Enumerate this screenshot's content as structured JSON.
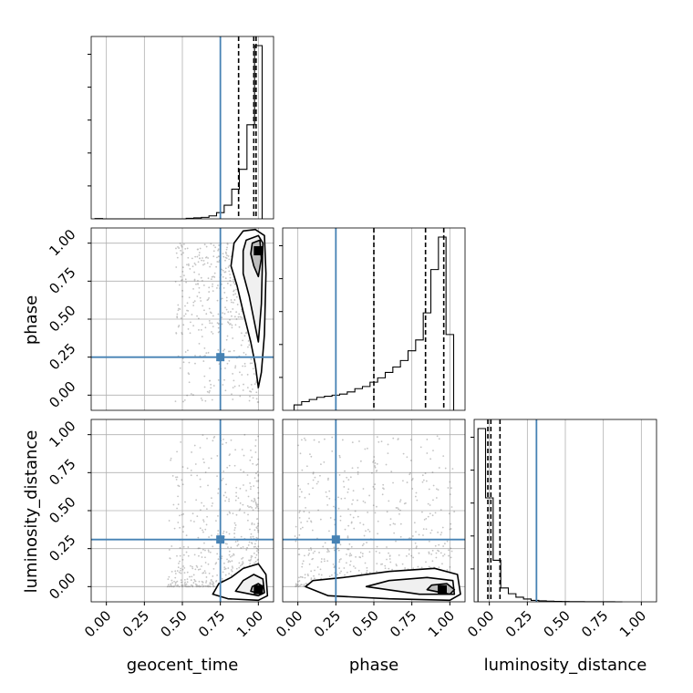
{
  "chart_data": {
    "type": "corner",
    "parameters": [
      "geocent_time",
      "phase",
      "luminosity_distance"
    ],
    "tick_labels": [
      "0.00",
      "0.25",
      "0.50",
      "0.75",
      "1.00"
    ],
    "tick_values": [
      0,
      0.25,
      0.5,
      0.75,
      1.0
    ],
    "axis_range": [
      -0.1,
      1.1
    ],
    "truth_color": "#4682b4",
    "truths": {
      "geocent_time": 0.75,
      "phase": 0.25,
      "luminosity_distance": 0.31
    },
    "grid": true,
    "diagonal": [
      {
        "parameter": "geocent_time",
        "quantiles": [
          0.87,
          0.97,
          0.985
        ],
        "hist": [
          [
            -0.05,
            0.1
          ],
          [
            0.0,
            0.0
          ],
          [
            0.05,
            0.0
          ],
          [
            0.1,
            0.0
          ],
          [
            0.15,
            0.0
          ],
          [
            0.2,
            0.0
          ],
          [
            0.25,
            0.0
          ],
          [
            0.3,
            0.0
          ],
          [
            0.35,
            0.0
          ],
          [
            0.4,
            0.0
          ],
          [
            0.45,
            0.0
          ],
          [
            0.5,
            0.0
          ],
          [
            0.55,
            0.2
          ],
          [
            0.6,
            0.4
          ],
          [
            0.65,
            0.6
          ],
          [
            0.7,
            1.2
          ],
          [
            0.75,
            2.5
          ],
          [
            0.8,
            5.5
          ],
          [
            0.85,
            12
          ],
          [
            0.9,
            20
          ],
          [
            0.95,
            38
          ],
          [
            1.0,
            70
          ]
        ]
      },
      {
        "parameter": "phase",
        "quantiles": [
          0.5,
          0.84,
          0.96
        ],
        "hist": [
          [
            0.0,
            0.5
          ],
          [
            0.05,
            0.8
          ],
          [
            0.1,
            1.0
          ],
          [
            0.15,
            1.2
          ],
          [
            0.2,
            1.3
          ],
          [
            0.25,
            1.4
          ],
          [
            0.3,
            1.5
          ],
          [
            0.35,
            1.7
          ],
          [
            0.4,
            2.0
          ],
          [
            0.45,
            2.2
          ],
          [
            0.5,
            2.6
          ],
          [
            0.55,
            3.0
          ],
          [
            0.6,
            3.5
          ],
          [
            0.65,
            4.0
          ],
          [
            0.7,
            4.6
          ],
          [
            0.75,
            5.5
          ],
          [
            0.8,
            6.5
          ],
          [
            0.85,
            9.0
          ],
          [
            0.9,
            13
          ],
          [
            0.95,
            16
          ],
          [
            1.0,
            7.0
          ]
        ]
      },
      {
        "parameter": "luminosity_distance",
        "quantiles": [
          -0.01,
          0.01,
          0.07
        ],
        "hist": [
          [
            -0.05,
            75
          ],
          [
            0.0,
            45
          ],
          [
            0.05,
            18
          ],
          [
            0.1,
            6
          ],
          [
            0.15,
            3.5
          ],
          [
            0.2,
            2
          ],
          [
            0.25,
            1.2
          ],
          [
            0.3,
            0.6
          ],
          [
            0.35,
            0.4
          ],
          [
            0.4,
            0.3
          ],
          [
            0.45,
            0.2
          ],
          [
            0.5,
            0.15
          ],
          [
            0.55,
            0.1
          ],
          [
            0.6,
            0.1
          ],
          [
            0.65,
            0.05
          ],
          [
            0.7,
            0.05
          ],
          [
            0.75,
            0.05
          ],
          [
            0.8,
            0.03
          ],
          [
            0.85,
            0.0
          ]
        ]
      }
    ],
    "pairs": [
      {
        "x": "geocent_time",
        "y": "phase",
        "peak": [
          1.0,
          0.95
        ],
        "contours": [
          [
            [
              0.9,
              1.08
            ],
            [
              0.98,
              1.09
            ],
            [
              1.04,
              1.05
            ],
            [
              1.05,
              0.8
            ],
            [
              1.04,
              0.4
            ],
            [
              1.02,
              0.15
            ],
            [
              1.0,
              0.05
            ],
            [
              0.98,
              0.2
            ],
            [
              0.95,
              0.35
            ],
            [
              0.9,
              0.55
            ],
            [
              0.86,
              0.72
            ],
            [
              0.82,
              0.85
            ],
            [
              0.84,
              1.0
            ]
          ],
          [
            [
              0.92,
              1.02
            ],
            [
              1.0,
              1.05
            ],
            [
              1.03,
              1.0
            ],
            [
              1.02,
              0.6
            ],
            [
              1.0,
              0.35
            ],
            [
              0.98,
              0.45
            ],
            [
              0.94,
              0.65
            ],
            [
              0.9,
              0.8
            ],
            [
              0.9,
              0.95
            ]
          ],
          [
            [
              0.96,
              1.0
            ],
            [
              1.01,
              1.02
            ],
            [
              1.02,
              0.9
            ],
            [
              1.0,
              0.78
            ],
            [
              0.97,
              0.85
            ],
            [
              0.95,
              0.93
            ]
          ]
        ]
      },
      {
        "x": "geocent_time",
        "y": "luminosity_distance",
        "peak": [
          1.0,
          -0.02
        ],
        "contours": [
          [
            [
              0.7,
              -0.05
            ],
            [
              0.8,
              -0.08
            ],
            [
              1.0,
              -0.09
            ],
            [
              1.06,
              -0.06
            ],
            [
              1.05,
              0.08
            ],
            [
              1.0,
              0.15
            ],
            [
              0.9,
              0.12
            ],
            [
              0.82,
              0.06
            ],
            [
              0.74,
              0.02
            ]
          ],
          [
            [
              0.85,
              -0.03
            ],
            [
              1.0,
              -0.06
            ],
            [
              1.04,
              -0.04
            ],
            [
              1.03,
              0.05
            ],
            [
              0.97,
              0.08
            ],
            [
              0.9,
              0.04
            ]
          ],
          [
            [
              0.95,
              -0.03
            ],
            [
              1.02,
              -0.05
            ],
            [
              1.03,
              0.0
            ],
            [
              1.0,
              0.02
            ],
            [
              0.96,
              0.0
            ]
          ]
        ]
      },
      {
        "x": "phase",
        "y": "luminosity_distance",
        "peak": [
          0.95,
          -0.02
        ],
        "contours": [
          [
            [
              0.05,
              0.0
            ],
            [
              0.2,
              -0.06
            ],
            [
              0.6,
              -0.08
            ],
            [
              1.0,
              -0.09
            ],
            [
              1.07,
              -0.05
            ],
            [
              1.05,
              0.08
            ],
            [
              0.9,
              0.12
            ],
            [
              0.6,
              0.1
            ],
            [
              0.3,
              0.06
            ],
            [
              0.1,
              0.04
            ]
          ],
          [
            [
              0.45,
              0.0
            ],
            [
              0.8,
              -0.05
            ],
            [
              1.03,
              -0.05
            ],
            [
              1.02,
              0.04
            ],
            [
              0.85,
              0.06
            ],
            [
              0.6,
              0.04
            ]
          ],
          [
            [
              0.85,
              -0.02
            ],
            [
              1.0,
              -0.05
            ],
            [
              1.03,
              -0.02
            ],
            [
              0.98,
              0.02
            ],
            [
              0.88,
              0.01
            ]
          ]
        ]
      }
    ]
  }
}
